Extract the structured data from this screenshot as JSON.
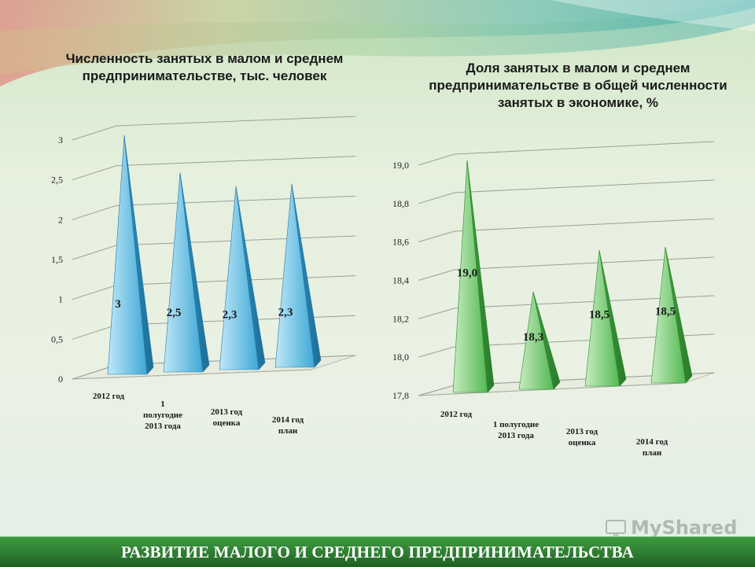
{
  "footer": {
    "text": "РАЗВИТИЕ МАЛОГО И СРЕДНЕГО ПРЕДПРИНИМАТЕЛЬСТВА"
  },
  "watermark": {
    "text": "MyShared"
  },
  "colors": {
    "left_series": "#3aa6d4",
    "right_series": "#5cbf5c",
    "footer": "#2e7d32"
  },
  "chart_data": [
    {
      "type": "bar",
      "title": "Численность занятых в малом и среднем предпринимательстве, тыс. человек",
      "categories": [
        "2012 год",
        "1 полугодие 2013 года",
        "2013 год оценка",
        "2014 год план"
      ],
      "values": [
        3,
        2.5,
        2.3,
        2.3
      ],
      "value_labels": [
        "3",
        "2,5",
        "2,3",
        "2,3"
      ],
      "ylim": [
        0,
        3
      ],
      "yticks": [
        "0",
        "0,5",
        "1",
        "1,5",
        "2",
        "2,5",
        "3"
      ],
      "xlabel": "",
      "ylabel": "",
      "grid": true,
      "style": "3d-pyramid"
    },
    {
      "type": "bar",
      "title": "Доля занятых в малом и среднем предпринимательстве в общей численности занятых в экономике, %",
      "categories": [
        "2012 год",
        "1 полугодие 2013 года",
        "2013 год оценка",
        "2014 год план"
      ],
      "values": [
        19.0,
        18.3,
        18.5,
        18.5
      ],
      "value_labels": [
        "19,0",
        "18,3",
        "18,5",
        "18,5"
      ],
      "ylim": [
        17.8,
        19.0
      ],
      "yticks": [
        "17,8",
        "18,0",
        "18,2",
        "18,4",
        "18,6",
        "18,8",
        "19,0"
      ],
      "xlabel": "",
      "ylabel": "",
      "grid": true,
      "style": "3d-pyramid"
    }
  ]
}
